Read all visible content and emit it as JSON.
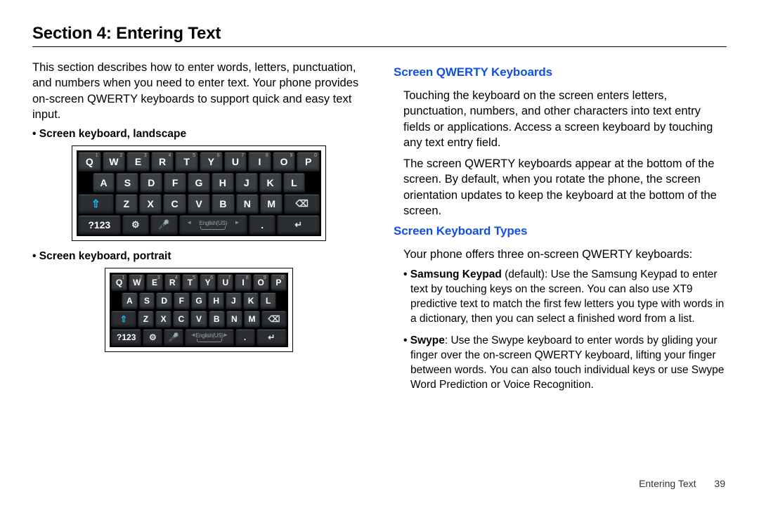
{
  "section": {
    "title": "Section 4: Entering Text"
  },
  "left": {
    "intro": "This section describes how to enter words, letters, punctuation, and numbers when you need to enter text. Your phone provides on-screen QWERTY keyboards to support quick and easy text input.",
    "landscape_label": "Screen keyboard, landscape",
    "portrait_label": "Screen keyboard, portrait"
  },
  "right": {
    "h1": "Screen QWERTY Keyboards",
    "p1": "Touching the keyboard on the screen enters letters, punctuation, numbers, and other characters into text entry fields or applications. Access a screen keyboard by touching any text entry field.",
    "p2": "The screen QWERTY keyboards appear at the bottom of the screen. By default, when you rotate the phone, the screen orientation updates to keep the keyboard at the bottom of the screen.",
    "h2": "Screen Keyboard Types",
    "p3": "Your phone offers three on-screen QWERTY keyboards:",
    "items": [
      {
        "name": "Samsung Keypad",
        "suffix": " (default): Use the Samsung Keypad to enter text by touching keys on the screen. You can also use XT9 predictive text to match the first few letters you type with words in a dictionary, then you can select a finished word from a list."
      },
      {
        "name": "Swype",
        "suffix": ": Use the Swype keyboard to enter words by gliding your finger over the on-screen QWERTY keyboard, lifting your finger between words. You can also touch individual keys or use Swype Word Prediction or Voice Recognition."
      }
    ]
  },
  "footer": {
    "chapter": "Entering Text",
    "page": "39"
  },
  "keyboard": {
    "row1": [
      {
        "lbl": "Q",
        "sup": "1"
      },
      {
        "lbl": "W",
        "sup": "2"
      },
      {
        "lbl": "E",
        "sup": "3"
      },
      {
        "lbl": "R",
        "sup": "4"
      },
      {
        "lbl": "T",
        "sup": "5"
      },
      {
        "lbl": "Y",
        "sup": "6"
      },
      {
        "lbl": "U",
        "sup": "7"
      },
      {
        "lbl": "I",
        "sup": "8"
      },
      {
        "lbl": "O",
        "sup": "9"
      },
      {
        "lbl": "P",
        "sup": "0"
      }
    ],
    "row2": [
      {
        "lbl": "A"
      },
      {
        "lbl": "S"
      },
      {
        "lbl": "D"
      },
      {
        "lbl": "F"
      },
      {
        "lbl": "G"
      },
      {
        "lbl": "H"
      },
      {
        "lbl": "J"
      },
      {
        "lbl": "K"
      },
      {
        "lbl": "L"
      }
    ],
    "row3_letters": [
      {
        "lbl": "Z"
      },
      {
        "lbl": "X"
      },
      {
        "lbl": "C"
      },
      {
        "lbl": "V"
      },
      {
        "lbl": "B"
      },
      {
        "lbl": "N"
      },
      {
        "lbl": "M"
      }
    ],
    "shift_glyph": "⇧",
    "bksp_glyph": "⌫",
    "sym_label": "?123",
    "gear_glyph": "⚙",
    "mic_glyph": "🎤",
    "space_lang": "English(US)",
    "period": ".",
    "enter_glyph": "↵",
    "colors": {
      "heading_blue": "#104fe6",
      "key_bg": "#3b3f42",
      "key_func_bg": "#2b2f33",
      "shift_active": "#18c4ff",
      "kbd_bg": "#000000",
      "page_bg": "#ffffff"
    }
  }
}
